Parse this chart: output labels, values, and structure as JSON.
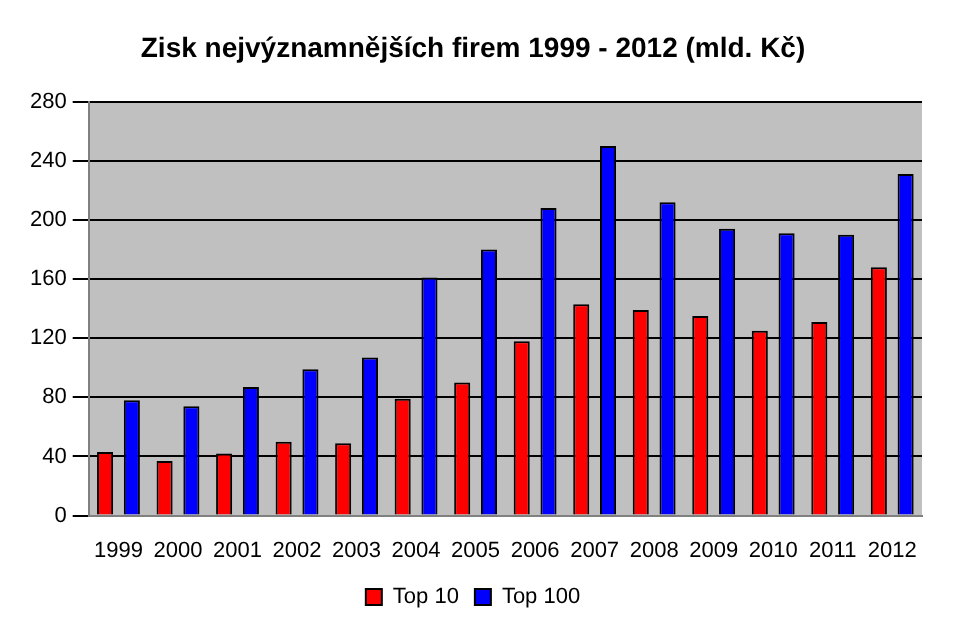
{
  "chart_data": {
    "type": "bar",
    "title": "Zisk nejvýznamnějších firem 1999 - 2012 (mld. Kč)",
    "categories": [
      "1999",
      "2000",
      "2001",
      "2002",
      "2003",
      "2004",
      "2005",
      "2006",
      "2007",
      "2008",
      "2009",
      "2010",
      "2011",
      "2012"
    ],
    "series": [
      {
        "name": "Top 10",
        "color": "#ff0000",
        "values": [
          43,
          37,
          42,
          50,
          49,
          79,
          90,
          118,
          143,
          139,
          135,
          125,
          131,
          168
        ]
      },
      {
        "name": "Top 100",
        "color": "#0000ff",
        "values": [
          78,
          74,
          87,
          99,
          107,
          161,
          180,
          208,
          250,
          212,
          194,
          191,
          190,
          231
        ]
      }
    ],
    "ylim": [
      0,
      280
    ],
    "yticks": [
      0,
      40,
      80,
      120,
      160,
      200,
      240,
      280
    ],
    "grid": "y",
    "legend": "bottom"
  }
}
